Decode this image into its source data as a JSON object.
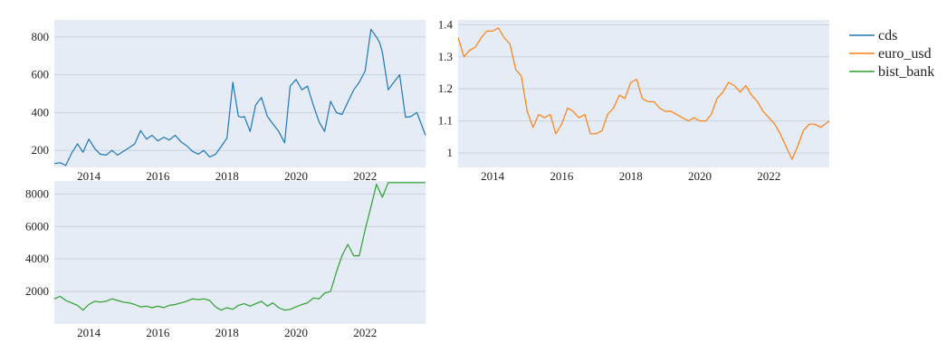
{
  "chart_data": [
    {
      "type": "line",
      "xlim": [
        2013.0,
        2023.75
      ],
      "ylim": [
        110,
        890
      ],
      "xticks": [
        2014,
        2016,
        2018,
        2020,
        2022
      ],
      "xtick_labels": [
        "2014",
        "2016",
        "2018",
        "2020",
        "2022"
      ],
      "yticks": [
        200,
        400,
        600,
        800
      ],
      "ytick_labels": [
        "200",
        "400",
        "600",
        "800"
      ],
      "grid": true,
      "series": [
        {
          "name": "cds",
          "color": "#1f77b4",
          "x": [
            2013.0,
            2013.17,
            2013.33,
            2013.5,
            2013.67,
            2013.83,
            2014.0,
            2014.17,
            2014.33,
            2014.5,
            2014.67,
            2014.83,
            2015.0,
            2015.17,
            2015.33,
            2015.5,
            2015.67,
            2015.83,
            2016.0,
            2016.17,
            2016.33,
            2016.5,
            2016.67,
            2016.83,
            2017.0,
            2017.17,
            2017.33,
            2017.5,
            2017.67,
            2017.83,
            2018.0,
            2018.17,
            2018.33,
            2018.42,
            2018.5,
            2018.67,
            2018.83,
            2019.0,
            2019.17,
            2019.33,
            2019.5,
            2019.67,
            2019.83,
            2020.0,
            2020.17,
            2020.33,
            2020.5,
            2020.67,
            2020.83,
            2021.0,
            2021.17,
            2021.33,
            2021.5,
            2021.67,
            2021.83,
            2022.0,
            2022.17,
            2022.33,
            2022.42,
            2022.5,
            2022.67,
            2022.83,
            2023.0,
            2023.17,
            2023.33,
            2023.5,
            2023.75
          ],
          "values": [
            130,
            135,
            120,
            185,
            235,
            190,
            260,
            210,
            180,
            175,
            200,
            175,
            195,
            215,
            235,
            305,
            260,
            280,
            250,
            270,
            255,
            280,
            245,
            225,
            195,
            180,
            200,
            165,
            180,
            220,
            265,
            560,
            380,
            375,
            380,
            300,
            440,
            480,
            380,
            340,
            300,
            240,
            540,
            575,
            520,
            540,
            440,
            350,
            300,
            460,
            400,
            390,
            455,
            520,
            560,
            620,
            840,
            800,
            770,
            720,
            520,
            560,
            600,
            375,
            380,
            400,
            280
          ]
        }
      ]
    },
    {
      "type": "line",
      "xlim": [
        2013.0,
        2023.75
      ],
      "ylim": [
        0.955,
        1.415
      ],
      "xticks": [
        2014,
        2016,
        2018,
        2020,
        2022
      ],
      "xtick_labels": [
        "2014",
        "2016",
        "2018",
        "2020",
        "2022"
      ],
      "yticks": [
        1.0,
        1.1,
        1.2,
        1.3,
        1.4
      ],
      "ytick_labels": [
        "1",
        "1.1",
        "1.2",
        "1.3",
        "1.4"
      ],
      "grid": true,
      "series": [
        {
          "name": "euro_usd",
          "color": "#ff7f0e",
          "x": [
            2013.0,
            2013.17,
            2013.33,
            2013.5,
            2013.67,
            2013.83,
            2014.0,
            2014.17,
            2014.33,
            2014.5,
            2014.67,
            2014.83,
            2015.0,
            2015.17,
            2015.33,
            2015.5,
            2015.67,
            2015.83,
            2016.0,
            2016.17,
            2016.33,
            2016.5,
            2016.67,
            2016.83,
            2017.0,
            2017.17,
            2017.33,
            2017.5,
            2017.67,
            2017.83,
            2018.0,
            2018.17,
            2018.33,
            2018.5,
            2018.67,
            2018.83,
            2019.0,
            2019.17,
            2019.33,
            2019.5,
            2019.67,
            2019.83,
            2020.0,
            2020.17,
            2020.33,
            2020.5,
            2020.67,
            2020.83,
            2021.0,
            2021.17,
            2021.33,
            2021.5,
            2021.67,
            2021.83,
            2022.0,
            2022.17,
            2022.33,
            2022.5,
            2022.67,
            2022.83,
            2023.0,
            2023.17,
            2023.33,
            2023.5,
            2023.75
          ],
          "values": [
            1.36,
            1.3,
            1.32,
            1.33,
            1.36,
            1.38,
            1.38,
            1.39,
            1.36,
            1.34,
            1.26,
            1.24,
            1.13,
            1.08,
            1.12,
            1.11,
            1.12,
            1.06,
            1.09,
            1.14,
            1.13,
            1.11,
            1.12,
            1.06,
            1.06,
            1.07,
            1.12,
            1.14,
            1.18,
            1.17,
            1.22,
            1.23,
            1.17,
            1.16,
            1.16,
            1.14,
            1.13,
            1.13,
            1.12,
            1.11,
            1.1,
            1.11,
            1.1,
            1.1,
            1.12,
            1.17,
            1.19,
            1.22,
            1.21,
            1.19,
            1.21,
            1.18,
            1.16,
            1.13,
            1.11,
            1.09,
            1.06,
            1.02,
            0.98,
            1.02,
            1.07,
            1.09,
            1.09,
            1.08,
            1.1
          ]
        }
      ]
    },
    {
      "type": "line",
      "xlim": [
        2013.0,
        2023.75
      ],
      "ylim": [
        0,
        8800
      ],
      "xticks": [
        2014,
        2016,
        2018,
        2020,
        2022
      ],
      "xtick_labels": [
        "2014",
        "2016",
        "2018",
        "2020",
        "2022"
      ],
      "yticks": [
        2000,
        4000,
        6000,
        8000
      ],
      "ytick_labels": [
        "2000",
        "4000",
        "6000",
        "8000"
      ],
      "grid": true,
      "series": [
        {
          "name": "bist_bank",
          "color": "#2ca02c",
          "x": [
            2013.0,
            2013.17,
            2013.33,
            2013.5,
            2013.67,
            2013.83,
            2014.0,
            2014.17,
            2014.33,
            2014.5,
            2014.67,
            2014.83,
            2015.0,
            2015.17,
            2015.33,
            2015.5,
            2015.67,
            2015.83,
            2016.0,
            2016.17,
            2016.33,
            2016.5,
            2016.67,
            2016.83,
            2017.0,
            2017.17,
            2017.33,
            2017.5,
            2017.67,
            2017.83,
            2018.0,
            2018.17,
            2018.33,
            2018.5,
            2018.67,
            2018.83,
            2019.0,
            2019.17,
            2019.33,
            2019.5,
            2019.67,
            2019.83,
            2020.0,
            2020.17,
            2020.33,
            2020.5,
            2020.67,
            2020.83,
            2021.0,
            2021.17,
            2021.33,
            2021.5,
            2021.67,
            2021.83,
            2022.0,
            2022.17,
            2022.33,
            2022.5,
            2022.67,
            2022.83,
            2023.0,
            2023.17,
            2023.33,
            2023.5,
            2023.75
          ],
          "values": [
            1550,
            1700,
            1450,
            1300,
            1150,
            850,
            1200,
            1400,
            1350,
            1400,
            1550,
            1450,
            1350,
            1300,
            1200,
            1050,
            1100,
            1000,
            1100,
            1000,
            1150,
            1200,
            1300,
            1400,
            1550,
            1500,
            1550,
            1450,
            1050,
            850,
            1000,
            900,
            1150,
            1250,
            1100,
            1250,
            1400,
            1100,
            1300,
            1000,
            850,
            900,
            1050,
            1200,
            1300,
            1600,
            1550,
            1900,
            2000,
            3200,
            4200,
            4900,
            4200,
            4200,
            5800,
            7200,
            8600,
            7800,
            8700,
            8700,
            8700,
            8700,
            8700,
            8700,
            8700
          ]
        }
      ]
    }
  ],
  "legend": {
    "placement": "top-right",
    "items": [
      {
        "label": "cds",
        "color": "#1f77b4"
      },
      {
        "label": "euro_usd",
        "color": "#ff7f0e"
      },
      {
        "label": "bist_bank",
        "color": "#2ca02c"
      }
    ]
  },
  "style": {
    "plot_bg": "#e5ecf6",
    "grid_color": "#c9d2de"
  }
}
